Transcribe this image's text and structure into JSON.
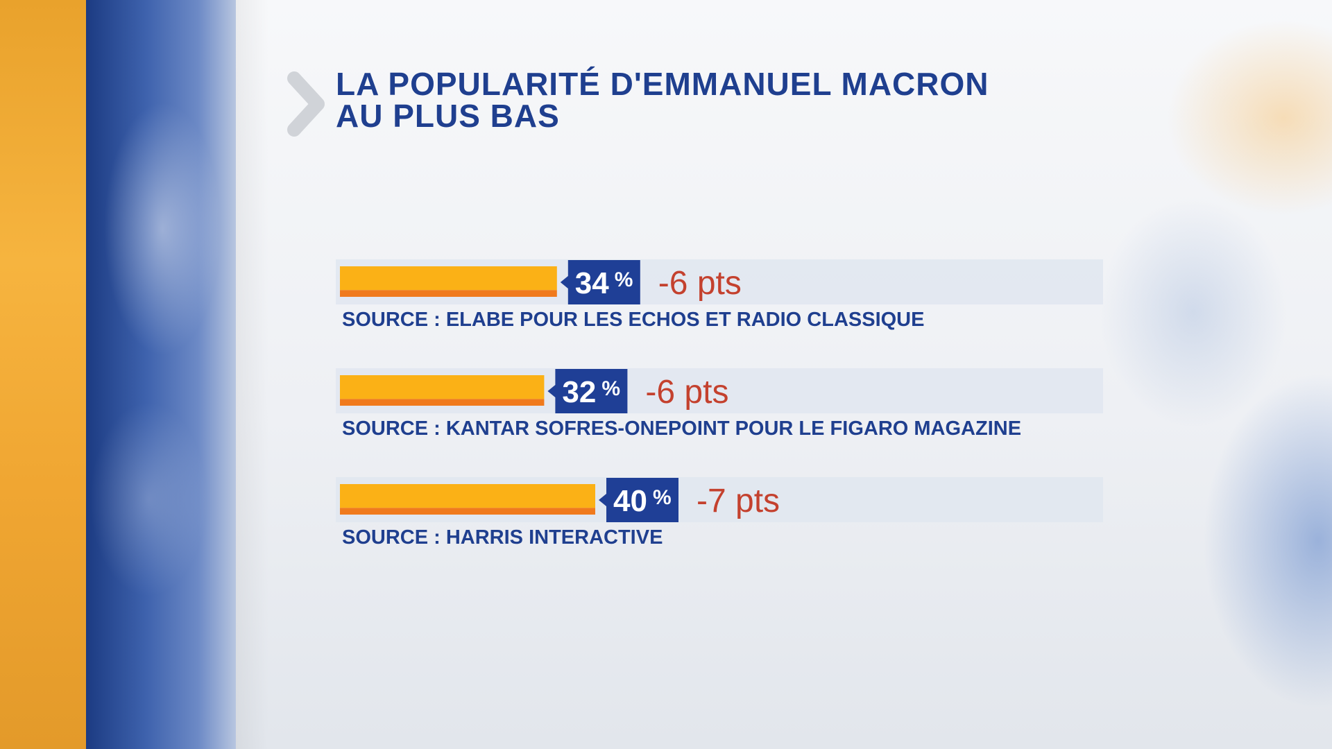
{
  "chart_data": {
    "type": "bar",
    "orientation": "horizontal",
    "title": "LA POPULARITÉ D'EMMANUEL MACRON AU PLUS BAS",
    "title_lines": [
      "LA POPULARITÉ D'EMMANUEL MACRON",
      "AU PLUS BAS"
    ],
    "unit": "%",
    "xlim": [
      0,
      100
    ],
    "series": [
      {
        "value": 34,
        "value_text": "34",
        "percent_sign": "%",
        "change": "-6 pts",
        "source": "SOURCE : ELABE POUR LES ECHOS ET RADIO CLASSIQUE"
      },
      {
        "value": 32,
        "value_text": "32",
        "percent_sign": "%",
        "change": "-6 pts",
        "source": "SOURCE :  KANTAR SOFRES-ONEPOINT POUR LE FIGARO MAGAZINE"
      },
      {
        "value": 40,
        "value_text": "40",
        "percent_sign": "%",
        "change": "-7 pts",
        "source": "SOURCE : HARRIS INTERACTIVE"
      }
    ]
  },
  "colors": {
    "title": "#1f3f8f",
    "bar_top": "#fbb116",
    "bar_bottom": "#f07a1d",
    "label_box": "#1f3f96",
    "change": "#c4412e",
    "accent_orange": "#f6b43f",
    "accent_blue": "#2b4e9c"
  },
  "icons": {
    "title_marker": "chevron-right-icon"
  }
}
